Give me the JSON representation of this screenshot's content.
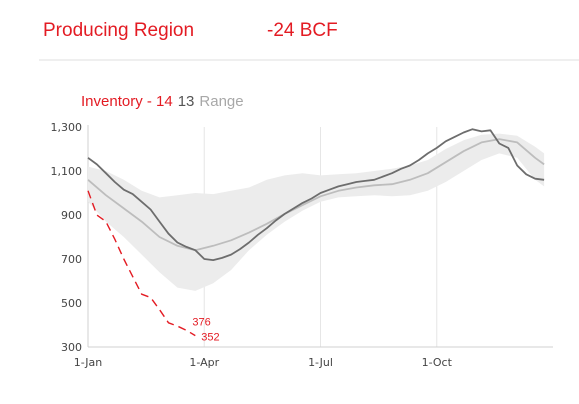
{
  "header": {
    "title": "Producing Region",
    "value": "-24 BCF"
  },
  "colors": {
    "accent": "#e31b23",
    "series_14": "#6d6d6d",
    "series_13": "#bdbdbd",
    "range_fill": "#ececec",
    "range_label": "#a8a8a8"
  },
  "chart_data": {
    "type": "line",
    "title": "Inventory - 14 13 Range",
    "legend": [
      {
        "label": "Inventory - 14",
        "color": "#e31b23"
      },
      {
        "label": "13",
        "color": "#555555"
      },
      {
        "label": "Range",
        "color": "#a8a8a8"
      }
    ],
    "xlabel": "",
    "ylabel": "",
    "x_ticks": [
      {
        "label": "1-Jan",
        "week": 0
      },
      {
        "label": "1-Apr",
        "week": 13
      },
      {
        "label": "1-Jul",
        "week": 26
      },
      {
        "label": "1-Oct",
        "week": 39
      }
    ],
    "xlim": [
      0,
      52
    ],
    "ylim": [
      300,
      1300
    ],
    "y_ticks": [
      300,
      500,
      700,
      900,
      1100,
      1300
    ],
    "grid": "vertical",
    "series": [
      {
        "name": "14",
        "style": "dashed",
        "x": [
          0,
          1,
          2,
          3,
          4,
          5,
          6,
          7,
          8,
          9,
          10,
          11,
          12
        ],
        "values": [
          1010,
          900,
          870,
          790,
          700,
          620,
          540,
          525,
          470,
          410,
          395,
          376,
          352
        ],
        "end_labels": [
          {
            "index": 11,
            "text": "376"
          },
          {
            "index": 12,
            "text": "352"
          }
        ]
      },
      {
        "name": "13",
        "x": [
          0,
          1,
          2,
          3,
          4,
          5,
          6,
          7,
          8,
          9,
          10,
          11,
          12,
          13,
          14,
          15,
          16,
          17,
          18,
          19,
          20,
          21,
          22,
          23,
          24,
          25,
          26,
          27,
          28,
          29,
          30,
          31,
          32,
          33,
          34,
          35,
          36,
          37,
          38,
          39,
          40,
          41,
          42,
          43,
          44,
          45,
          46,
          47,
          48,
          49,
          50,
          51
        ],
        "values": [
          1160,
          1130,
          1090,
          1050,
          1015,
          995,
          960,
          925,
          870,
          815,
          775,
          755,
          740,
          700,
          695,
          705,
          720,
          745,
          775,
          810,
          840,
          875,
          905,
          930,
          955,
          975,
          1000,
          1015,
          1030,
          1040,
          1050,
          1055,
          1060,
          1075,
          1090,
          1110,
          1125,
          1150,
          1180,
          1205,
          1235,
          1255,
          1275,
          1290,
          1280,
          1285,
          1225,
          1205,
          1125,
          1085,
          1065,
          1060
        ]
      },
      {
        "name": "avg",
        "x": [
          0,
          2,
          4,
          6,
          8,
          10,
          12,
          14,
          16,
          18,
          20,
          22,
          24,
          26,
          28,
          30,
          32,
          34,
          36,
          38,
          40,
          42,
          44,
          46,
          48,
          50,
          51
        ],
        "values": [
          1060,
          990,
          930,
          870,
          800,
          760,
          740,
          760,
          785,
          820,
          860,
          905,
          945,
          985,
          1010,
          1025,
          1035,
          1040,
          1060,
          1090,
          1140,
          1190,
          1230,
          1245,
          1230,
          1160,
          1130
        ]
      }
    ],
    "range": {
      "x": [
        0,
        2,
        4,
        6,
        8,
        10,
        12,
        14,
        16,
        18,
        20,
        22,
        24,
        26,
        28,
        30,
        32,
        34,
        36,
        38,
        40,
        42,
        44,
        46,
        48,
        50,
        51
      ],
      "high": [
        1120,
        1100,
        1060,
        1010,
        980,
        990,
        1000,
        995,
        1010,
        1025,
        1060,
        1080,
        1090,
        1080,
        1085,
        1090,
        1100,
        1110,
        1125,
        1150,
        1200,
        1240,
        1265,
        1270,
        1260,
        1210,
        1180
      ],
      "low": [
        960,
        870,
        800,
        720,
        640,
        570,
        555,
        590,
        650,
        740,
        810,
        870,
        920,
        960,
        980,
        985,
        990,
        985,
        990,
        1010,
        1050,
        1100,
        1150,
        1180,
        1160,
        1060,
        1030
      ]
    }
  }
}
